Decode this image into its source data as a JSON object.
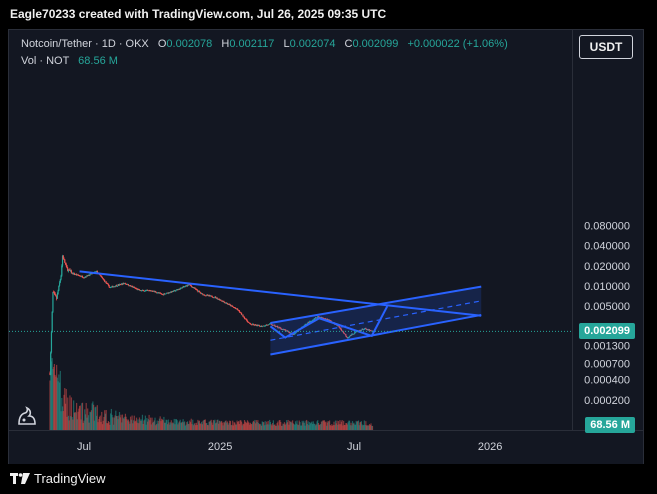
{
  "header": {
    "title": "Eagle70233 created with TradingView.com, Jul 26, 2025 09:35 UTC"
  },
  "legend": {
    "symbol": "Notcoin/Tether · 1D · OKX",
    "open_label": "O",
    "open": "0.002078",
    "high_label": "H",
    "high": "0.002117",
    "low_label": "L",
    "low": "0.002074",
    "close_label": "C",
    "close": "0.002099",
    "change": "+0.000022 (+1.06%)",
    "volume_label": "Vol · NOT",
    "volume": "68.56 M"
  },
  "currency_button": "USDT",
  "last_price_badge": "0.002099",
  "volume_badge": "68.56 M",
  "footer": {
    "brand": "TradingView"
  },
  "colors": {
    "up": "#26a69a",
    "down": "#ef5350",
    "drawing": "#2962ff",
    "background": "#131722"
  },
  "chart_data": {
    "type": "candlestick",
    "y_scale": "log",
    "y_tick_labels": [
      "0.080000",
      "0.040000",
      "0.020000",
      "0.010000",
      "0.005000",
      "0.002500",
      "0.001300",
      "0.000700",
      "0.000400",
      "0.000200"
    ],
    "x_tick_labels": [
      "Jul",
      "2025",
      "Jul",
      "2026"
    ],
    "price_path": [
      [
        "2024-05-16",
        0.0005
      ],
      [
        "2024-05-20",
        0.008
      ],
      [
        "2024-05-25",
        0.0065
      ],
      [
        "2024-05-31",
        0.0145
      ],
      [
        "2024-06-02",
        0.028
      ],
      [
        "2024-06-08",
        0.018
      ],
      [
        "2024-06-15",
        0.0155
      ],
      [
        "2024-07-01",
        0.0135
      ],
      [
        "2024-07-18",
        0.0165
      ],
      [
        "2024-08-05",
        0.0095
      ],
      [
        "2024-08-25",
        0.011
      ],
      [
        "2024-09-15",
        0.0085
      ],
      [
        "2024-10-01",
        0.0085
      ],
      [
        "2024-10-15",
        0.0075
      ],
      [
        "2024-11-01",
        0.0085
      ],
      [
        "2024-11-20",
        0.0105
      ],
      [
        "2024-12-08",
        0.0075
      ],
      [
        "2024-12-25",
        0.0068
      ],
      [
        "2025-01-10",
        0.0055
      ],
      [
        "2025-01-25",
        0.0044
      ],
      [
        "2025-02-10",
        0.0027
      ],
      [
        "2025-02-25",
        0.0025
      ],
      [
        "2025-03-10",
        0.0027
      ],
      [
        "2025-03-25",
        0.0023
      ],
      [
        "2025-04-10",
        0.0019
      ],
      [
        "2025-04-25",
        0.0026
      ],
      [
        "2025-05-13",
        0.0035
      ],
      [
        "2025-05-28",
        0.0031
      ],
      [
        "2025-06-10",
        0.0025
      ],
      [
        "2025-06-22",
        0.0017
      ],
      [
        "2025-07-05",
        0.0021
      ],
      [
        "2025-07-15",
        0.0023
      ],
      [
        "2025-07-26",
        0.002099
      ]
    ],
    "drawings": {
      "descending_trendline": [
        [
          "2024-06-25",
          0.0165
        ],
        [
          "2025-12-20",
          0.0036
        ]
      ],
      "channel_upper": [
        [
          "2025-03-10",
          0.0028
        ],
        [
          "2025-12-20",
          0.0098
        ]
      ],
      "channel_lower": [
        [
          "2025-03-10",
          0.00095
        ],
        [
          "2025-12-20",
          0.0037
        ]
      ],
      "channel_mid": [
        [
          "2025-03-10",
          0.00155
        ],
        [
          "2025-12-20",
          0.006
        ]
      ],
      "projection": [
        [
          "2025-03-10",
          0.0025
        ],
        [
          "2025-03-30",
          0.0017
        ],
        [
          "2025-05-15",
          0.0033
        ],
        [
          "2025-07-25",
          0.0018
        ],
        [
          "2025-08-15",
          0.005
        ]
      ]
    }
  }
}
